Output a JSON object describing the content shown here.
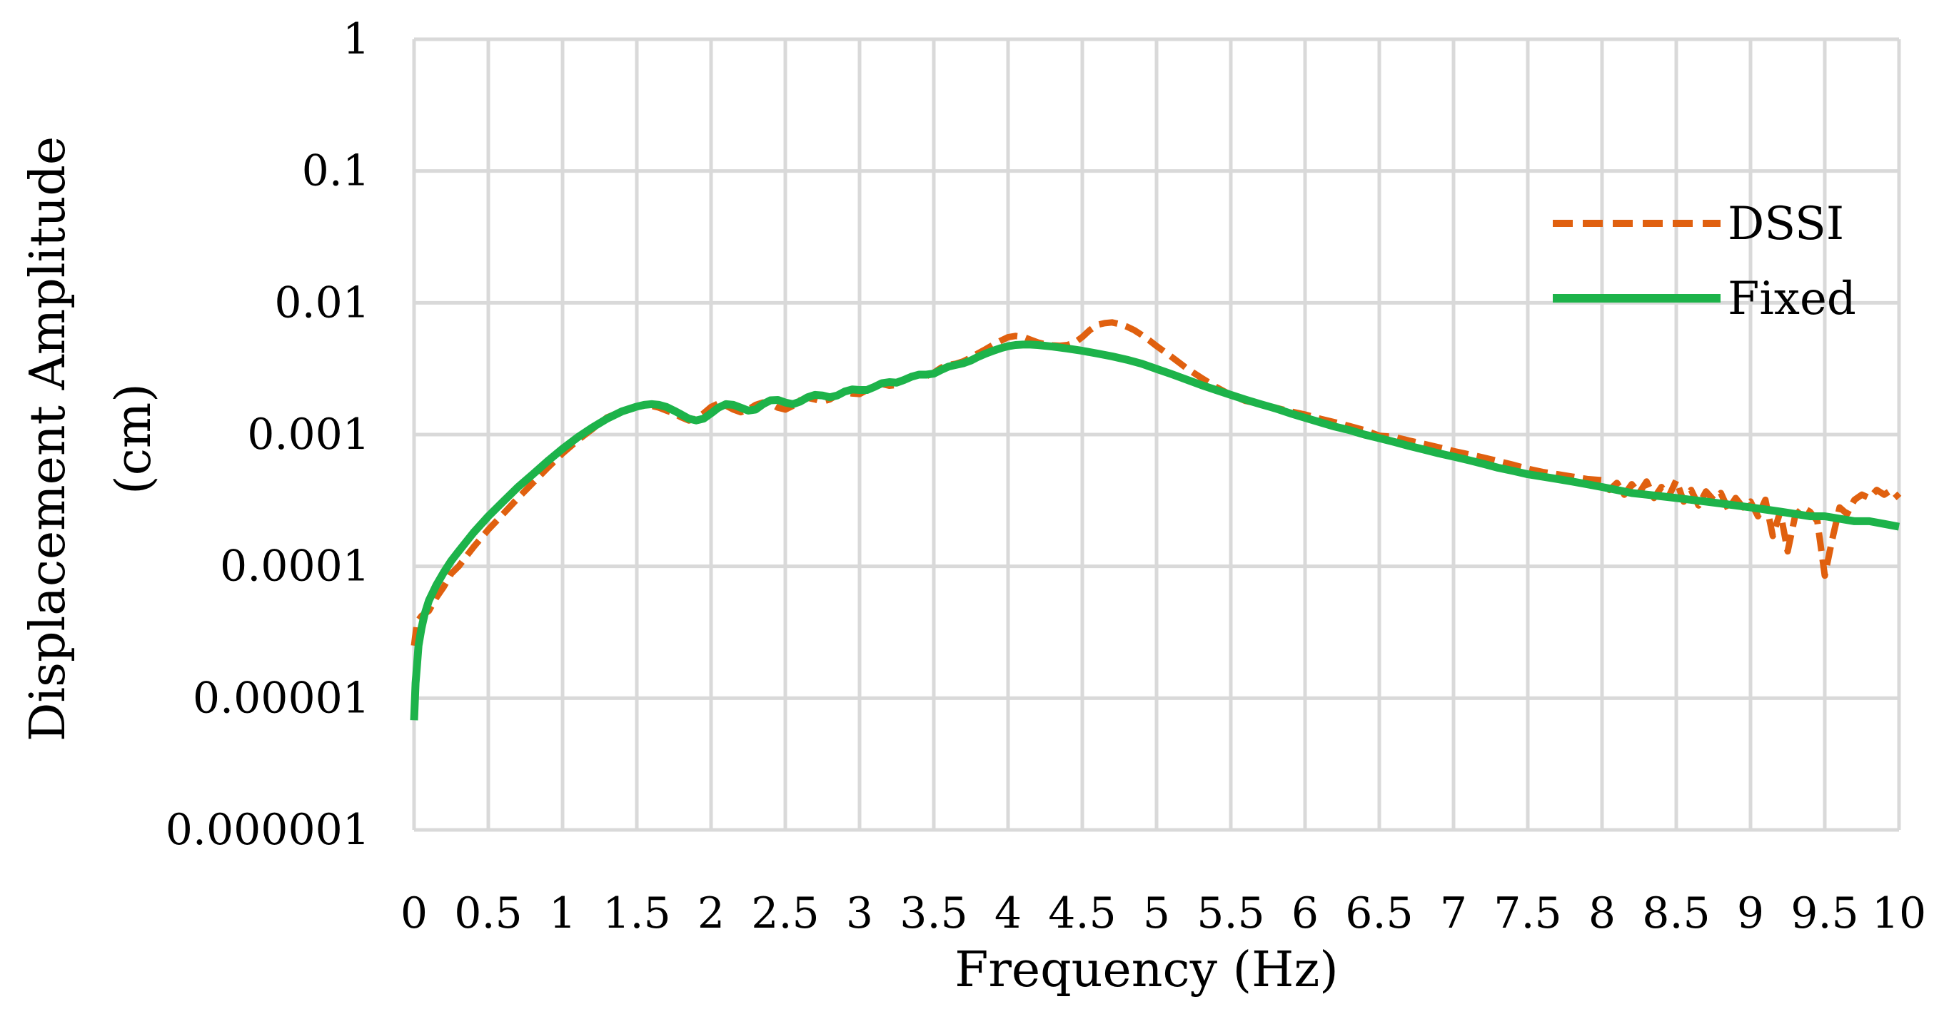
{
  "chart_data": {
    "type": "line",
    "title": "",
    "xlabel": "Frequency (Hz)",
    "ylabel_lines": [
      "Displacement Amplitude",
      "(cm)"
    ],
    "x_scale": "linear",
    "y_scale": "log",
    "xlim": [
      0,
      10
    ],
    "ylim": [
      1e-06,
      1
    ],
    "x_ticks": [
      "0",
      "0.5",
      "1",
      "1.5",
      "2",
      "2.5",
      "3",
      "3.5",
      "4",
      "4.5",
      "5",
      "5.5",
      "6",
      "6.5",
      "7",
      "7.5",
      "8",
      "8.5",
      "9",
      "9.5",
      "10"
    ],
    "y_ticks": [
      "1",
      "0.1",
      "0.01",
      "0.001",
      "0.0001",
      "0.00001",
      "0.000001"
    ],
    "grid": true,
    "legend_position": "right",
    "series": [
      {
        "name": "DSSI",
        "color": "#e0600f",
        "style": "dashed",
        "x": [
          0,
          0.02,
          0.05,
          0.1,
          0.15,
          0.2,
          0.25,
          0.3,
          0.4,
          0.5,
          0.6,
          0.7,
          0.8,
          0.9,
          1.0,
          1.1,
          1.2,
          1.3,
          1.4,
          1.5,
          1.55,
          1.6,
          1.65,
          1.7,
          1.75,
          1.8,
          1.85,
          1.9,
          1.95,
          2.0,
          2.05,
          2.1,
          2.15,
          2.2,
          2.25,
          2.3,
          2.35,
          2.4,
          2.45,
          2.5,
          2.55,
          2.6,
          2.65,
          2.7,
          2.75,
          2.8,
          2.85,
          2.9,
          2.95,
          3.0,
          3.05,
          3.1,
          3.15,
          3.2,
          3.25,
          3.3,
          3.35,
          3.4,
          3.45,
          3.5,
          3.55,
          3.6,
          3.65,
          3.7,
          3.75,
          3.8,
          3.85,
          3.9,
          3.95,
          4.0,
          4.05,
          4.1,
          4.15,
          4.2,
          4.25,
          4.3,
          4.35,
          4.4,
          4.45,
          4.5,
          4.55,
          4.6,
          4.65,
          4.7,
          4.75,
          4.8,
          4.85,
          4.9,
          4.95,
          5.0,
          5.1,
          5.2,
          5.3,
          5.4,
          5.5,
          5.6,
          5.7,
          5.8,
          5.9,
          6.0,
          6.1,
          6.2,
          6.3,
          6.4,
          6.5,
          6.6,
          6.7,
          6.8,
          6.9,
          7.0,
          7.1,
          7.2,
          7.3,
          7.4,
          7.5,
          7.6,
          7.7,
          7.8,
          7.9,
          8.0,
          8.05,
          8.1,
          8.15,
          8.2,
          8.25,
          8.3,
          8.35,
          8.4,
          8.45,
          8.5,
          8.55,
          8.6,
          8.65,
          8.7,
          8.75,
          8.8,
          8.85,
          8.9,
          8.95,
          9.0,
          9.05,
          9.1,
          9.15,
          9.2,
          9.25,
          9.3,
          9.35,
          9.4,
          9.45,
          9.5,
          9.55,
          9.6,
          9.65,
          9.7,
          9.75,
          9.8,
          9.85,
          9.9,
          9.95,
          10.0
        ],
        "y": [
          2.5e-05,
          3.8e-05,
          4.2e-05,
          4.6e-05,
          5.8e-05,
          7e-05,
          8.8e-05,
          0.0001,
          0.00014,
          0.00019,
          0.00025,
          0.00033,
          0.00043,
          0.00056,
          0.00072,
          0.0009,
          0.0011,
          0.00135,
          0.0015,
          0.00162,
          0.00166,
          0.00165,
          0.0016,
          0.00152,
          0.00145,
          0.00135,
          0.00128,
          0.00132,
          0.00145,
          0.00162,
          0.00172,
          0.00166,
          0.00155,
          0.00148,
          0.00155,
          0.00168,
          0.00175,
          0.00172,
          0.0016,
          0.00155,
          0.00165,
          0.00182,
          0.0019,
          0.00185,
          0.00178,
          0.00185,
          0.002,
          0.0021,
          0.00205,
          0.00203,
          0.00218,
          0.00235,
          0.00242,
          0.00235,
          0.00238,
          0.0026,
          0.00278,
          0.00282,
          0.00278,
          0.00295,
          0.00322,
          0.00338,
          0.00345,
          0.0036,
          0.00385,
          0.00415,
          0.00445,
          0.0048,
          0.00515,
          0.00548,
          0.0056,
          0.00552,
          0.00525,
          0.005,
          0.00485,
          0.00475,
          0.00472,
          0.00478,
          0.005,
          0.0055,
          0.0062,
          0.0068,
          0.007,
          0.0071,
          0.0069,
          0.0066,
          0.0062,
          0.0057,
          0.0052,
          0.0047,
          0.0039,
          0.0032,
          0.0027,
          0.0023,
          0.002,
          0.0018,
          0.0017,
          0.0016,
          0.0015,
          0.00142,
          0.00132,
          0.00124,
          0.00116,
          0.00108,
          0.00098,
          0.00096,
          0.0009,
          0.00085,
          0.0008,
          0.00075,
          0.00071,
          0.00067,
          0.00063,
          0.00059,
          0.00055,
          0.00052,
          0.0005,
          0.00048,
          0.00046,
          0.00045,
          0.00038,
          0.00043,
          0.00035,
          0.00042,
          0.00036,
          0.00044,
          0.00033,
          0.0004,
          0.00034,
          0.00045,
          0.00031,
          0.00038,
          0.00029,
          0.00037,
          0.00032,
          0.00036,
          0.00027,
          0.00033,
          0.00028,
          0.00031,
          0.00024,
          0.00032,
          0.00017,
          0.00026,
          0.00013,
          0.00024,
          0.00028,
          0.00026,
          0.00022,
          8.5e-05,
          0.00016,
          0.00028,
          0.00025,
          0.00032,
          0.00035,
          0.00033,
          0.00038,
          0.00035,
          0.00038,
          0.00033
        ]
      },
      {
        "name": "Fixed",
        "color": "#1db34a",
        "style": "solid",
        "x": [
          0,
          0.01,
          0.02,
          0.03,
          0.05,
          0.07,
          0.1,
          0.15,
          0.2,
          0.25,
          0.3,
          0.4,
          0.5,
          0.6,
          0.7,
          0.8,
          0.9,
          1.0,
          1.1,
          1.2,
          1.3,
          1.4,
          1.5,
          1.55,
          1.6,
          1.65,
          1.7,
          1.75,
          1.8,
          1.85,
          1.9,
          1.95,
          2.0,
          2.05,
          2.1,
          2.15,
          2.2,
          2.25,
          2.3,
          2.35,
          2.4,
          2.45,
          2.5,
          2.55,
          2.6,
          2.65,
          2.7,
          2.75,
          2.8,
          2.85,
          2.9,
          2.95,
          3.0,
          3.05,
          3.1,
          3.15,
          3.2,
          3.25,
          3.3,
          3.35,
          3.4,
          3.45,
          3.5,
          3.55,
          3.6,
          3.65,
          3.7,
          3.75,
          3.8,
          3.85,
          3.9,
          3.95,
          4.0,
          4.05,
          4.1,
          4.15,
          4.2,
          4.3,
          4.4,
          4.5,
          4.6,
          4.7,
          4.8,
          4.9,
          5.0,
          5.1,
          5.2,
          5.3,
          5.4,
          5.5,
          5.6,
          5.7,
          5.8,
          5.9,
          6.0,
          6.1,
          6.2,
          6.3,
          6.4,
          6.5,
          6.6,
          6.7,
          6.8,
          6.9,
          7.0,
          7.1,
          7.2,
          7.3,
          7.4,
          7.5,
          7.6,
          7.7,
          7.8,
          7.9,
          8.0,
          8.1,
          8.2,
          8.3,
          8.4,
          8.5,
          8.6,
          8.7,
          8.8,
          8.9,
          9.0,
          9.1,
          9.2,
          9.3,
          9.4,
          9.5,
          9.6,
          9.7,
          9.8,
          9.9,
          10.0
        ],
        "y": [
          6.8e-06,
          1.3e-05,
          1.8e-05,
          2.5e-05,
          3.4e-05,
          4.3e-05,
          5.5e-05,
          7.2e-05,
          9e-05,
          0.00011,
          0.00013,
          0.00018,
          0.00024,
          0.00031,
          0.0004,
          0.0005,
          0.00063,
          0.00078,
          0.00095,
          0.00113,
          0.00132,
          0.0015,
          0.00163,
          0.00168,
          0.0017,
          0.00168,
          0.00162,
          0.00152,
          0.00142,
          0.00132,
          0.00128,
          0.00132,
          0.00145,
          0.0016,
          0.0017,
          0.00168,
          0.0016,
          0.00152,
          0.00155,
          0.0017,
          0.00182,
          0.00183,
          0.00175,
          0.0017,
          0.00178,
          0.00192,
          0.002,
          0.00198,
          0.00192,
          0.00198,
          0.00212,
          0.0022,
          0.00218,
          0.00218,
          0.0023,
          0.00245,
          0.0025,
          0.00248,
          0.0026,
          0.00275,
          0.00285,
          0.00285,
          0.0029,
          0.0031,
          0.00328,
          0.00338,
          0.00348,
          0.00365,
          0.0039,
          0.00412,
          0.00432,
          0.00452,
          0.00468,
          0.00478,
          0.00482,
          0.00482,
          0.00478,
          0.00465,
          0.0045,
          0.00432,
          0.00412,
          0.00392,
          0.0037,
          0.00345,
          0.00315,
          0.00288,
          0.00262,
          0.00238,
          0.00218,
          0.002,
          0.00184,
          0.0017,
          0.00158,
          0.00145,
          0.00134,
          0.00124,
          0.00115,
          0.00108,
          0.001,
          0.00094,
          0.00088,
          0.00082,
          0.00077,
          0.00072,
          0.00068,
          0.00064,
          0.0006,
          0.00056,
          0.00053,
          0.0005,
          0.00048,
          0.00046,
          0.00044,
          0.00042,
          0.0004,
          0.00038,
          0.00036,
          0.00035,
          0.00034,
          0.00033,
          0.00032,
          0.00031,
          0.0003,
          0.00029,
          0.00028,
          0.00027,
          0.00026,
          0.00025,
          0.00024,
          0.00024,
          0.00023,
          0.00022,
          0.00022,
          0.00021,
          0.0002
        ]
      }
    ]
  }
}
